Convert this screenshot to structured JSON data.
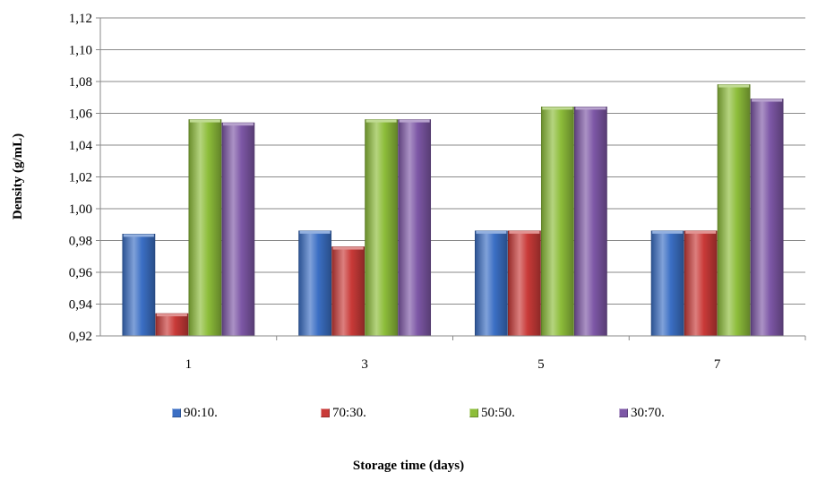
{
  "chart_data": {
    "type": "bar",
    "xlabel": "Storage time (days)",
    "ylabel": "Density (g/mL)",
    "categories": [
      "1",
      "3",
      "5",
      "7"
    ],
    "series": [
      {
        "name": "90:10.",
        "color": "#3b6fc4",
        "values": [
          0.984,
          0.986,
          0.986,
          0.986
        ]
      },
      {
        "name": "70:30.",
        "color": "#c93a38",
        "values": [
          0.934,
          0.976,
          0.986,
          0.986
        ]
      },
      {
        "name": "50:50.",
        "color": "#8dbd3a",
        "values": [
          1.056,
          1.056,
          1.064,
          1.078
        ]
      },
      {
        "name": "30:70.",
        "color": "#7d57a6",
        "values": [
          1.054,
          1.056,
          1.064,
          1.069
        ]
      }
    ],
    "ylim": [
      0.92,
      1.12
    ],
    "yticks": [
      "0,92",
      "0,94",
      "0,96",
      "0,98",
      "1,00",
      "1,02",
      "1,04",
      "1,06",
      "1,08",
      "1,10",
      "1,12"
    ],
    "grid": true,
    "legend_position": "bottom"
  }
}
